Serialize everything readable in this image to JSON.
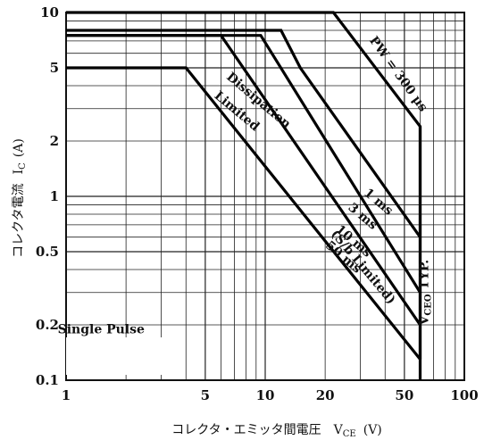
{
  "chart_data": {
    "type": "line",
    "x_scale": "log",
    "y_scale": "log",
    "xlim": [
      1,
      100
    ],
    "ylim": [
      0.1,
      10
    ],
    "grid": true,
    "xlabel": "コレクタ・エミッタ間電圧",
    "xlabel_symbol": "V",
    "xlabel_sub": "CE",
    "xlabel_unit": "(V)",
    "ylabel": "コレクタ電流",
    "ylabel_symbol": "I",
    "ylabel_sub": "C",
    "ylabel_unit": "(A)",
    "x_ticks": [
      {
        "value": 1,
        "label": "1"
      },
      {
        "value": 5,
        "label": "5"
      },
      {
        "value": 10,
        "label": "10"
      },
      {
        "value": 20,
        "label": "20"
      },
      {
        "value": 50,
        "label": "50"
      },
      {
        "value": 100,
        "label": "100"
      }
    ],
    "y_ticks": [
      {
        "value": 0.1,
        "label": "0.1"
      },
      {
        "value": 0.2,
        "label": "0.2"
      },
      {
        "value": 0.5,
        "label": "0.5"
      },
      {
        "value": 1,
        "label": "1"
      },
      {
        "value": 2,
        "label": "2"
      },
      {
        "value": 5,
        "label": "5"
      },
      {
        "value": 10,
        "label": "10"
      }
    ],
    "series": [
      {
        "name": "PW = 300 μs",
        "points": [
          [
            1,
            10
          ],
          [
            22,
            10
          ],
          [
            60,
            2.4
          ],
          [
            60,
            0.6
          ]
        ]
      },
      {
        "name": "1 ms",
        "points": [
          [
            1,
            8
          ],
          [
            12,
            8
          ],
          [
            15,
            5
          ],
          [
            60,
            0.6
          ],
          [
            60,
            0.3
          ]
        ]
      },
      {
        "name": "3 ms",
        "points": [
          [
            1,
            7.5
          ],
          [
            9.5,
            7.5
          ],
          [
            60,
            0.3
          ],
          [
            60,
            0.2
          ]
        ]
      },
      {
        "name": "10 ms",
        "points": [
          [
            1,
            7.5
          ],
          [
            6,
            7.5
          ],
          [
            60,
            0.2
          ],
          [
            60,
            0.13
          ]
        ]
      },
      {
        "name": "50 ms",
        "points": [
          [
            1,
            5
          ],
          [
            4,
            5
          ],
          [
            60,
            0.13
          ]
        ]
      },
      {
        "name": "VCEO TYP.",
        "points": [
          [
            60,
            2.4
          ],
          [
            60,
            0.1
          ]
        ]
      }
    ],
    "annotations": [
      {
        "text": "PW = 300 μs",
        "x": 45,
        "y": 4.5
      },
      {
        "text": "Dissipation",
        "x": 9,
        "y": 3.2
      },
      {
        "text": "Limited",
        "x": 7,
        "y": 2.8
      },
      {
        "text": "1 ms",
        "x": 36,
        "y": 0.9
      },
      {
        "text": "3 ms",
        "x": 30,
        "y": 0.75
      },
      {
        "text": "10 ms",
        "x": 27,
        "y": 0.55
      },
      {
        "text": "50 ms",
        "x": 24,
        "y": 0.45
      },
      {
        "text": "(S/b Limited)",
        "x": 30,
        "y": 0.4
      },
      {
        "text": "VCEO TYP.",
        "x": 66,
        "y": 0.3
      },
      {
        "text": "Single Pulse",
        "x": 1.5,
        "y": 0.18
      }
    ]
  }
}
